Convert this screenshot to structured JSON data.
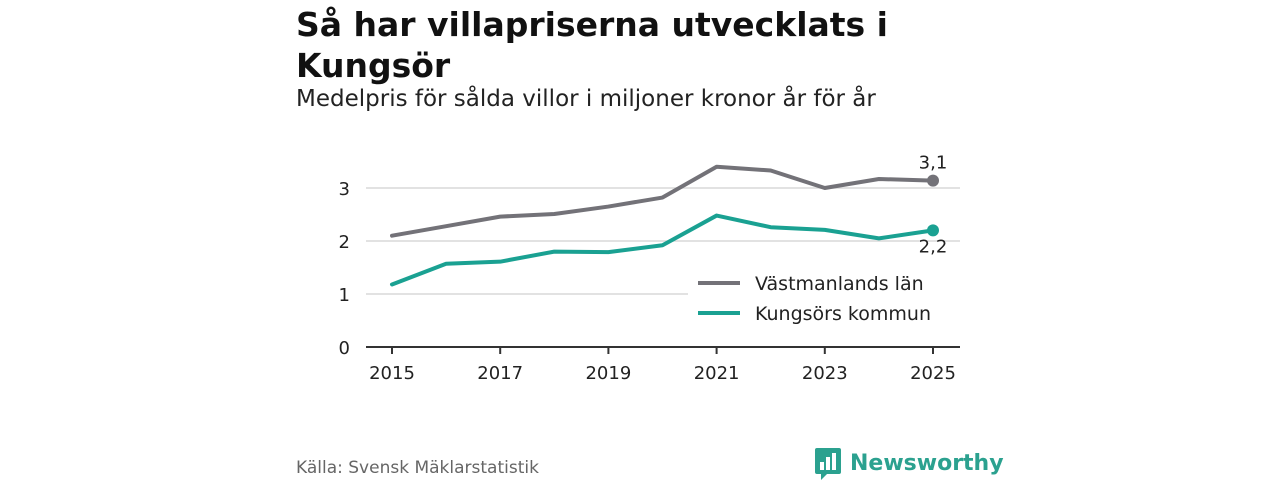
{
  "header": {
    "title": "Så har villapriserna utvecklats i Kungsör",
    "subtitle": "Medelpris för sålda villor i miljoner kronor år för år"
  },
  "footer": {
    "source": "Källa: Svensk Mäklarstatistik",
    "brand": "Newsworthy"
  },
  "colors": {
    "series_lan": "#737278",
    "series_kommun": "#1aa192",
    "grid": "#d9d9d9",
    "axis": "#333333",
    "brand": "#2ba18f"
  },
  "chart_data": {
    "type": "line",
    "title": "Så har villapriserna utvecklats i Kungsör",
    "subtitle": "Medelpris för sålda villor i miljoner kronor år för år",
    "xlabel": "",
    "ylabel": "",
    "x": [
      2015,
      2016,
      2017,
      2018,
      2019,
      2020,
      2021,
      2022,
      2023,
      2024,
      2025
    ],
    "xticks": [
      "2015",
      "2017",
      "2019",
      "2021",
      "2023",
      "2025"
    ],
    "yticks": [
      "0",
      "1",
      "2",
      "3"
    ],
    "xlim": [
      2015,
      2025
    ],
    "ylim": [
      0,
      3.5
    ],
    "grid": true,
    "legend_position": "bottom-right",
    "series": [
      {
        "name": "Västmanlands län",
        "values": [
          2.1,
          2.28,
          2.46,
          2.51,
          2.65,
          2.82,
          3.4,
          3.33,
          3.0,
          3.17,
          3.14
        ],
        "end_label": "3,1"
      },
      {
        "name": "Kungsörs kommun",
        "values": [
          1.18,
          1.57,
          1.61,
          1.8,
          1.79,
          1.92,
          2.48,
          2.26,
          2.21,
          2.05,
          2.2
        ],
        "end_label": "2,2"
      }
    ]
  }
}
